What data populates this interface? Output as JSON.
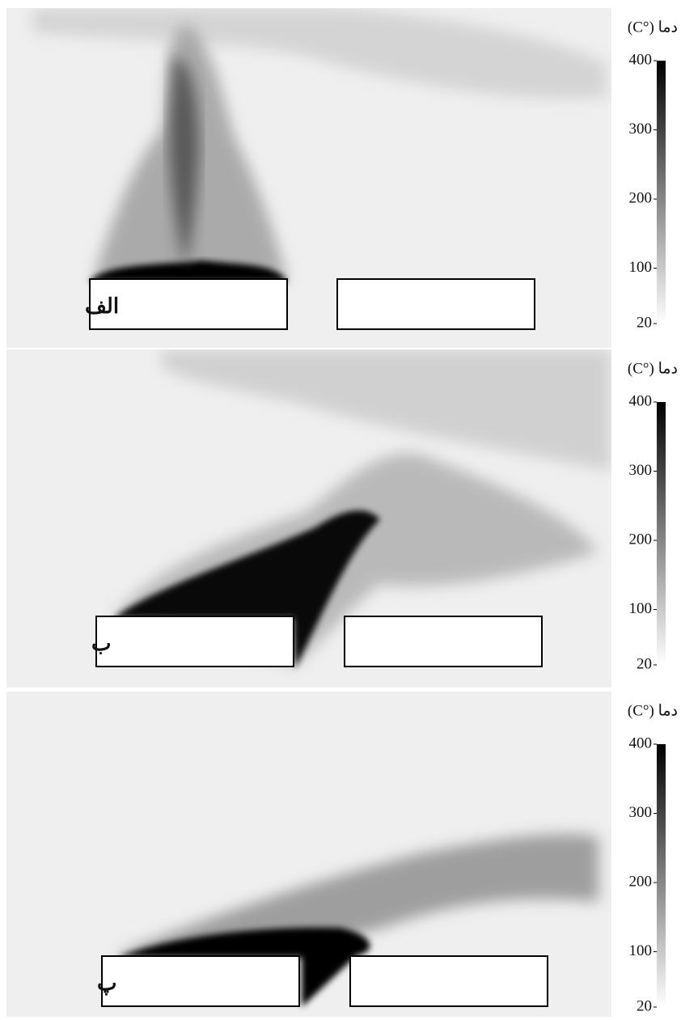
{
  "panels": [
    {
      "label": "الف",
      "colorbar": {
        "title": "دما (°C)",
        "lim": [
          20,
          400
        ],
        "ticks": [
          400,
          300,
          200,
          100,
          20
        ]
      }
    },
    {
      "label": "ب",
      "colorbar": {
        "title": "دما (°C)",
        "lim": [
          20,
          400
        ],
        "ticks": [
          400,
          300,
          200,
          100,
          20
        ]
      }
    },
    {
      "label": "پ",
      "colorbar": {
        "title": "دما (°C)",
        "lim": [
          20,
          400
        ],
        "ticks": [
          400,
          300,
          200,
          100,
          20
        ]
      }
    }
  ]
}
